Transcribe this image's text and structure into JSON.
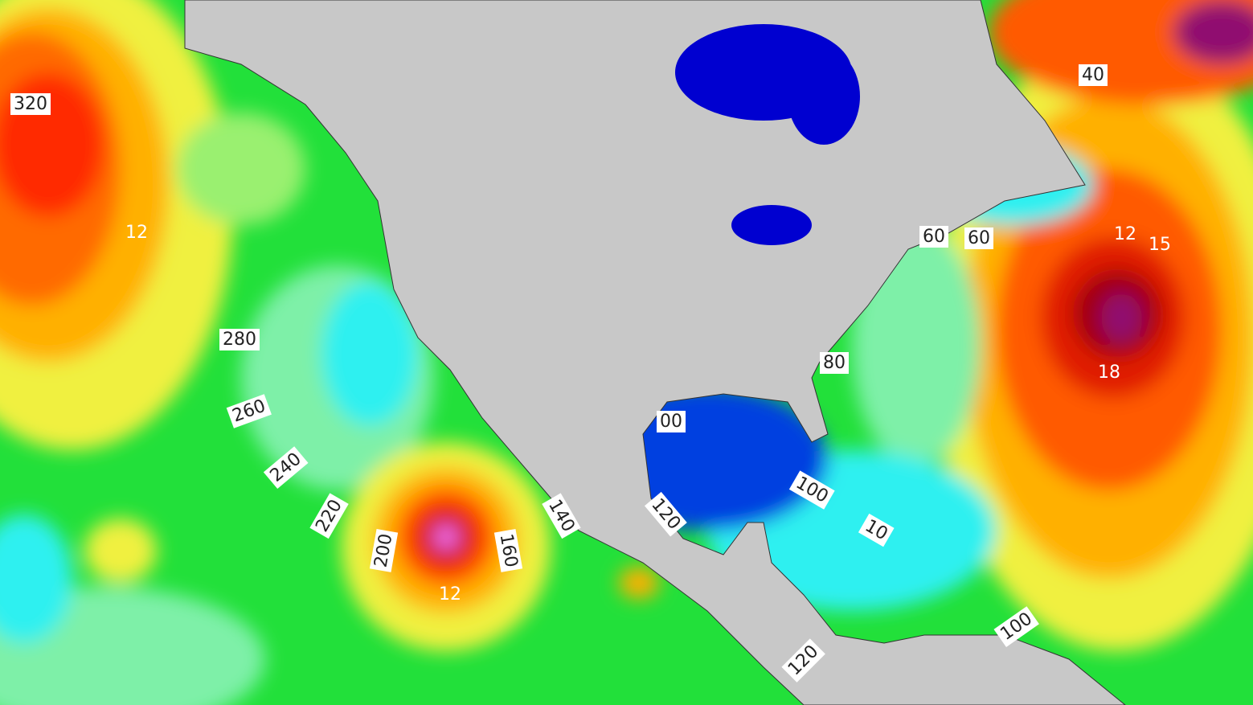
{
  "map": {
    "contour_labels": [
      "320",
      "12",
      "280",
      "260",
      "240",
      "220",
      "200",
      "160",
      "140",
      "12",
      "00",
      "120",
      "100",
      "10",
      "40",
      "60",
      "60",
      "12",
      "15",
      "18",
      "80",
      "100",
      "120"
    ]
  }
}
